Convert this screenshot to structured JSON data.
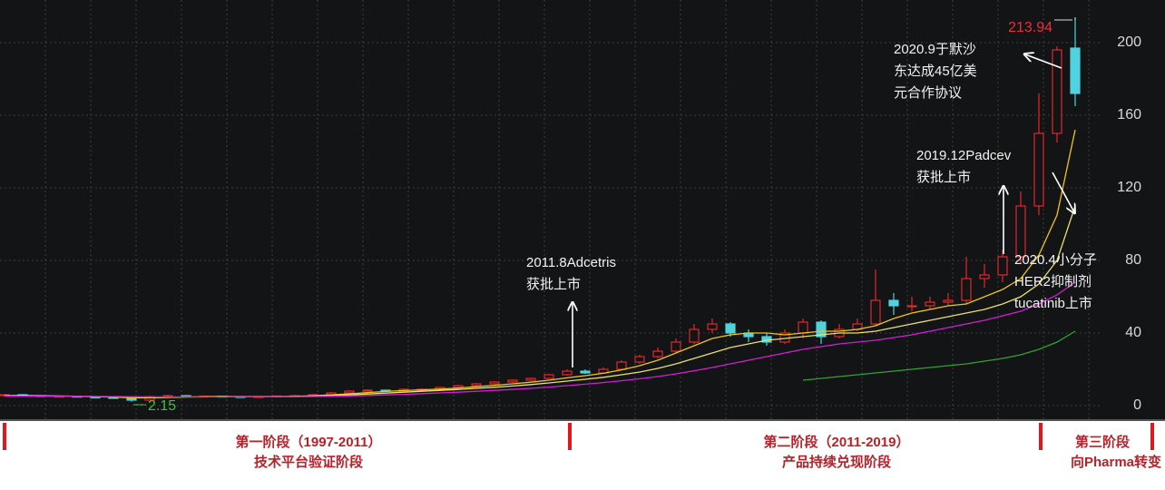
{
  "chart_data": {
    "type": "candlestick",
    "open": [
      5.5,
      6,
      5.5,
      5,
      5.2,
      4.8,
      4.5,
      4,
      3,
      5,
      5.5,
      5,
      5.2,
      5,
      4.8,
      5,
      5.3,
      5.5,
      6,
      7,
      8,
      8.5,
      8,
      9,
      9,
      10,
      11,
      12,
      13,
      14,
      15,
      17,
      19,
      18,
      20,
      24,
      27,
      30,
      35,
      42,
      45,
      40,
      38,
      35,
      40,
      46,
      38,
      42,
      45,
      58,
      55,
      55,
      57,
      58,
      70,
      72,
      82,
      110,
      150,
      197
    ],
    "high": [
      6.5,
      6.3,
      5.8,
      5.6,
      5.5,
      5,
      4.8,
      4.3,
      5.4,
      6,
      5.8,
      5.6,
      5.5,
      5.3,
      5.3,
      5.6,
      5.9,
      6.4,
      7.5,
      8.5,
      9,
      8.8,
      9.5,
      9.6,
      10.5,
      11.5,
      12.5,
      13.5,
      14.5,
      15.5,
      17.5,
      20,
      20,
      21,
      25,
      28,
      32,
      37,
      45,
      48,
      46,
      42,
      40,
      42,
      48,
      47,
      45,
      48,
      75,
      62,
      60,
      60,
      62,
      82,
      78,
      86,
      118,
      172,
      198,
      213.94
    ],
    "low": [
      5,
      5,
      4.7,
      4.8,
      4.5,
      4.2,
      3.8,
      2.15,
      2.8,
      4.8,
      4.8,
      4.8,
      4.7,
      4.5,
      4.6,
      4.9,
      5.2,
      5.8,
      6.6,
      7.6,
      8,
      7.6,
      7.8,
      8.6,
      8.8,
      9.6,
      10.6,
      11.6,
      12.6,
      13.6,
      14.6,
      16.5,
      17.5,
      17.5,
      19.5,
      23,
      26,
      29,
      34,
      40,
      38,
      35,
      33,
      34,
      37,
      34,
      37,
      41,
      44,
      50,
      52,
      53,
      55,
      56,
      65,
      68,
      78,
      105,
      145,
      165
    ],
    "close": [
      6,
      5.5,
      5,
      5.2,
      4.8,
      4.5,
      4,
      3,
      5,
      5.5,
      5,
      5.2,
      5,
      4.8,
      5,
      5.3,
      5.5,
      6,
      7,
      8,
      8.5,
      8,
      9,
      9,
      10,
      11,
      12,
      13,
      14,
      15,
      17,
      19,
      18,
      20,
      24,
      27,
      30,
      35,
      42,
      45,
      40,
      38,
      35,
      40,
      46,
      38,
      42,
      45,
      58,
      55,
      55,
      57,
      58,
      70,
      72,
      82,
      110,
      150,
      196,
      172
    ],
    "up_color": "#e0282e",
    "down_color": "#4fd3de",
    "series": [
      {
        "color": "#f0c419",
        "values": [
          5.5,
          5.6,
          5.4,
          5.2,
          5.1,
          4.9,
          4.7,
          4.3,
          4.3,
          4.5,
          4.8,
          5,
          5.1,
          5,
          5,
          5,
          5.1,
          5.4,
          5.9,
          6.5,
          7.2,
          7.8,
          8.3,
          8.7,
          9.1,
          9.7,
          10.4,
          11.2,
          12,
          12.9,
          14,
          15.3,
          16.5,
          17.8,
          19.7,
          22,
          25,
          29,
          33,
          37,
          39,
          40,
          40,
          39,
          40,
          41,
          41,
          42,
          44,
          48,
          51,
          53,
          55,
          56,
          60,
          64,
          70,
          83,
          105,
          152
        ]
      },
      {
        "color": "#e8e070",
        "values": [
          5.4,
          5.4,
          5.4,
          5.3,
          5.2,
          5,
          4.9,
          4.7,
          4.6,
          4.6,
          4.7,
          4.8,
          4.9,
          5,
          5,
          5,
          5,
          5.2,
          5.5,
          5.9,
          6.4,
          6.9,
          7.4,
          7.9,
          8.4,
          8.9,
          9.5,
          10.1,
          10.8,
          11.6,
          12.5,
          13.5,
          14.5,
          15.6,
          17,
          18.5,
          20.5,
          23,
          26,
          29,
          32,
          34,
          36,
          37,
          38,
          39,
          40,
          40,
          41,
          43,
          45,
          47,
          49,
          51,
          53,
          56,
          60,
          67,
          80,
          110
        ]
      },
      {
        "color": "#d21ed2",
        "values": [
          5.2,
          5.2,
          5.2,
          5.1,
          5.1,
          5,
          5,
          4.9,
          4.8,
          4.8,
          4.8,
          4.8,
          4.8,
          4.9,
          4.9,
          4.9,
          4.9,
          5,
          5.1,
          5.3,
          5.6,
          5.9,
          6.2,
          6.6,
          7,
          7.4,
          7.9,
          8.4,
          8.9,
          9.5,
          10.2,
          11,
          11.8,
          12.7,
          13.7,
          14.8,
          16,
          17.5,
          19.2,
          21,
          23,
          25,
          27,
          29,
          31,
          32.5,
          34,
          35,
          36,
          37.5,
          39,
          41,
          43,
          45,
          47,
          49.5,
          52,
          56,
          61,
          68
        ]
      },
      {
        "color": "#2fa32f",
        "values": [
          null,
          null,
          null,
          null,
          null,
          null,
          null,
          null,
          null,
          null,
          null,
          null,
          null,
          null,
          null,
          null,
          null,
          null,
          null,
          null,
          null,
          null,
          null,
          null,
          null,
          null,
          null,
          null,
          null,
          null,
          null,
          null,
          null,
          null,
          null,
          null,
          null,
          null,
          null,
          null,
          null,
          null,
          null,
          null,
          14,
          15,
          16,
          17,
          18,
          19,
          20,
          21,
          22,
          23,
          24.5,
          26,
          28,
          31,
          35,
          41
        ]
      }
    ],
    "ylim": [
      -7.5,
      223.5
    ],
    "yticks": [
      0,
      40,
      80,
      120,
      160,
      200
    ],
    "grid": true,
    "annotations": [
      {
        "lines": [
          "2011.8Adcetris",
          "获批上市"
        ]
      },
      {
        "lines": [
          "2019.12Padcev",
          "获批上市"
        ]
      },
      {
        "lines": [
          "2020.4小分子",
          "HER2抑制剂",
          "tucatinib上市"
        ]
      },
      {
        "lines": [
          "2020.9于默沙",
          "东达成45亿美",
          "元合作协议"
        ]
      }
    ]
  },
  "stages": [
    {
      "title": "第一阶段（1997-2011）",
      "subtitle": "技术平台验证阶段"
    },
    {
      "title": "第二阶段（2011-2019）",
      "subtitle": "产品持续兑现阶段"
    },
    {
      "title": "第三阶段",
      "subtitle": "向Pharma转变"
    }
  ]
}
